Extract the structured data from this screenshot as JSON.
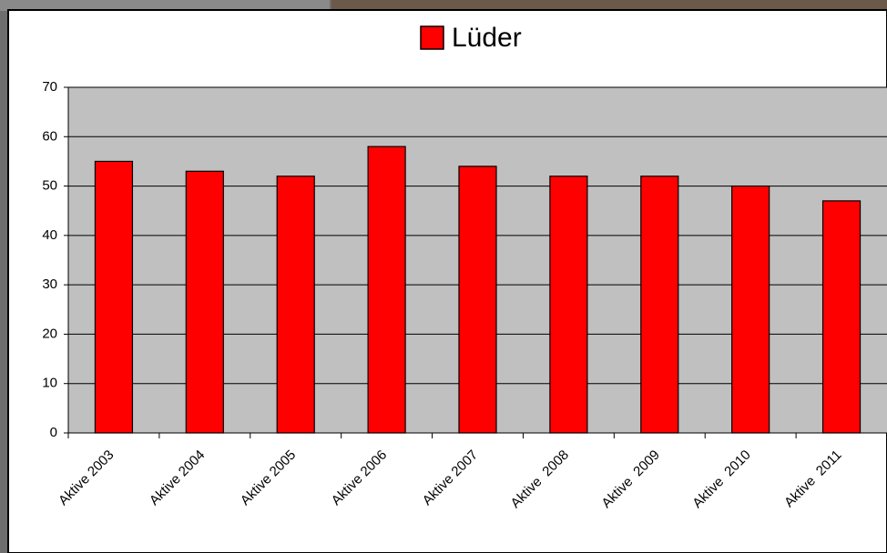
{
  "chart_data": {
    "type": "bar",
    "categories": [
      "Aktive 2003",
      "Aktive 2004",
      "Aktive 2005",
      "Aktive 2006",
      "Aktive 2007",
      "Aktive  2008",
      "Aktive  2009",
      "Aktive  2010",
      "Aktive  2011"
    ],
    "series": [
      {
        "name": "Lüder",
        "color": "#ff0000",
        "values": [
          55,
          53,
          52,
          58,
          54,
          52,
          52,
          50,
          47
        ]
      }
    ],
    "ylim": [
      0,
      70
    ],
    "yticks": [
      0,
      10,
      20,
      30,
      40,
      50,
      60,
      70
    ],
    "grid": true,
    "legend": "top"
  }
}
